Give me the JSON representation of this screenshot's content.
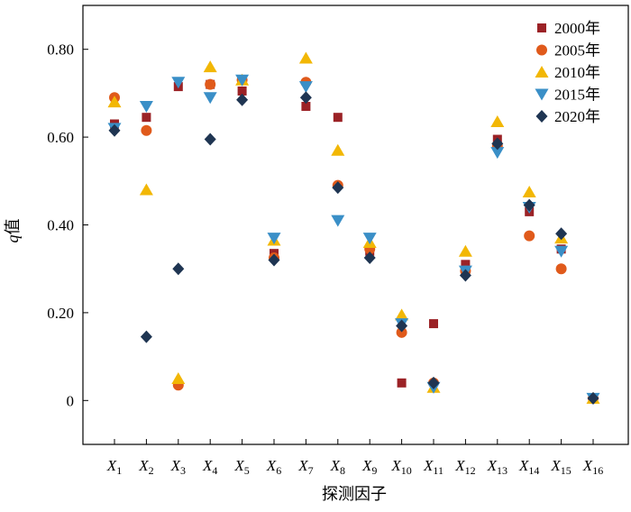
{
  "chart_data": {
    "type": "scatter",
    "xlabel": "探测因子",
    "ylabel_var": "q",
    "ylabel_suffix": "值",
    "ylim": [
      -0.1,
      0.9
    ],
    "yticks": [
      {
        "value": 0.8,
        "label": "0.80"
      },
      {
        "value": 0.6,
        "label": "0.60"
      },
      {
        "value": 0.4,
        "label": "0.40"
      },
      {
        "value": 0.2,
        "label": "0.20"
      },
      {
        "value": 0,
        "label": "0"
      }
    ],
    "categories": [
      {
        "var": "X",
        "sub": "1"
      },
      {
        "var": "X",
        "sub": "2"
      },
      {
        "var": "X",
        "sub": "3"
      },
      {
        "var": "X",
        "sub": "4"
      },
      {
        "var": "X",
        "sub": "5"
      },
      {
        "var": "X",
        "sub": "6"
      },
      {
        "var": "X",
        "sub": "7"
      },
      {
        "var": "X",
        "sub": "8"
      },
      {
        "var": "X",
        "sub": "9"
      },
      {
        "var": "X",
        "sub": "10"
      },
      {
        "var": "X",
        "sub": "11"
      },
      {
        "var": "X",
        "sub": "12"
      },
      {
        "var": "X",
        "sub": "13"
      },
      {
        "var": "X",
        "sub": "14"
      },
      {
        "var": "X",
        "sub": "15"
      },
      {
        "var": "X",
        "sub": "16"
      }
    ],
    "legend_position": "top-right",
    "series": [
      {
        "name": "2000年",
        "marker": "square",
        "color": "#9b2226",
        "values": [
          0.63,
          0.645,
          0.715,
          0.72,
          0.705,
          0.335,
          0.67,
          0.645,
          0.34,
          0.04,
          0.175,
          0.31,
          0.595,
          0.43,
          0.345,
          0.005
        ]
      },
      {
        "name": "2005年",
        "marker": "circle",
        "color": "#e05a1b",
        "values": [
          0.69,
          0.615,
          0.035,
          0.72,
          0.73,
          0.325,
          0.725,
          0.49,
          0.345,
          0.155,
          0.04,
          0.295,
          0.58,
          0.375,
          0.3,
          0.005
        ]
      },
      {
        "name": "2010年",
        "marker": "triangle-up",
        "color": "#f2b705",
        "values": [
          0.68,
          0.48,
          0.05,
          0.76,
          0.73,
          0.365,
          0.78,
          0.57,
          0.36,
          0.195,
          0.03,
          0.34,
          0.635,
          0.475,
          0.37,
          0.005
        ]
      },
      {
        "name": "2015年",
        "marker": "triangle-down",
        "color": "#3a8fc7",
        "values": [
          0.62,
          0.67,
          0.725,
          0.69,
          0.73,
          0.37,
          0.715,
          0.41,
          0.37,
          0.175,
          0.03,
          0.295,
          0.565,
          0.44,
          0.34,
          0.005
        ]
      },
      {
        "name": "2020年",
        "marker": "diamond",
        "color": "#1f3552",
        "values": [
          0.615,
          0.145,
          0.3,
          0.595,
          0.685,
          0.32,
          0.69,
          0.485,
          0.325,
          0.17,
          0.04,
          0.285,
          0.585,
          0.445,
          0.38,
          0.005
        ]
      }
    ]
  }
}
